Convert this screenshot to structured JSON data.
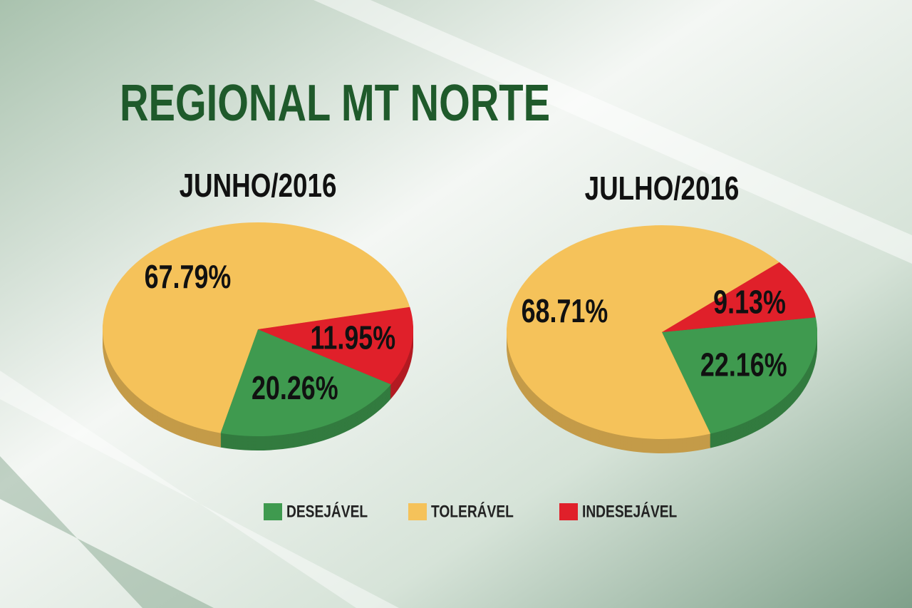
{
  "title": "REGIONAL MT NORTE",
  "legend": [
    {
      "name": "DESEJÁVEL",
      "color": "#3f9a4f"
    },
    {
      "name": "TOLERÁVEL",
      "color": "#f5c25a"
    },
    {
      "name": "INDESEJÁVEL",
      "color": "#e0202a"
    }
  ],
  "chart_data": [
    {
      "type": "pie",
      "title": "JUNHO/2016",
      "values": [
        20.26,
        67.79,
        11.95
      ],
      "value_labels": [
        "20.26%",
        "67.79%",
        "11.95%"
      ]
    },
    {
      "type": "pie",
      "title": "JULHO/2016",
      "values": [
        22.16,
        68.71,
        9.13
      ],
      "value_labels": [
        "22.16%",
        "68.71%",
        "9.13%"
      ]
    }
  ]
}
